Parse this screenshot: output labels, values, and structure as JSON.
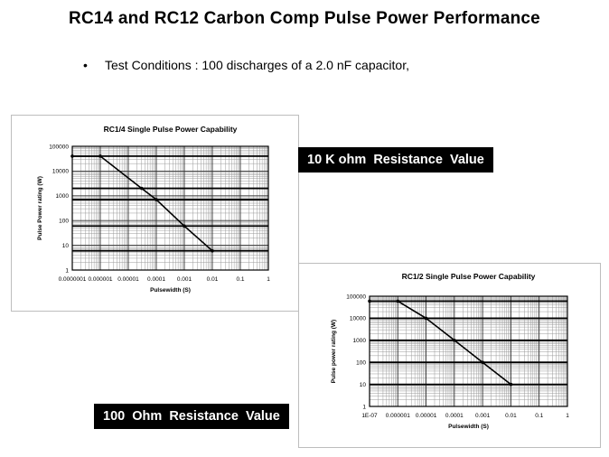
{
  "slide": {
    "title": "RC14 and RC12 Carbon Comp Pulse Power Performance",
    "bullet_char": "•",
    "bullet_text": "Test Conditions : 100 discharges of a 2.0 nF capacitor,"
  },
  "labels": {
    "chart1_resistance": "10 K ohm  Resistance  Value",
    "chart2_resistance": "100  Ohm  Resistance  Value"
  },
  "chart_data": [
    {
      "type": "line",
      "title": "RC1/4 Single Pulse Power Capability",
      "xlabel": "Pulsewidth (S)",
      "ylabel": "Pulse Power rating (W)",
      "x_scale": "log",
      "y_scale": "log",
      "xlim": [
        1e-07,
        1
      ],
      "ylim": [
        1,
        100000
      ],
      "x_tick_labels": [
        "0.0000001",
        "0.000001",
        "0.00001",
        "0.0001",
        "0.001",
        "0.01",
        "0.1",
        "1"
      ],
      "y_tick_labels": [
        "1",
        "10",
        "100",
        "1000",
        "10000",
        "100000"
      ],
      "grid": true,
      "series": [
        {
          "x": [
            1e-07,
            1e-06,
            3e-05,
            0.0001,
            0.001,
            0.01
          ],
          "y": [
            40000,
            40000,
            2000,
            700,
            60,
            6
          ]
        }
      ],
      "horizontal_guides": [
        40000,
        2000,
        700,
        60,
        6
      ]
    },
    {
      "type": "line",
      "title": "RC1/2 Single Pulse Power Capability",
      "xlabel": "Pulsewidth (S)",
      "ylabel": "Pulse power rating (W)",
      "x_scale": "log",
      "y_scale": "log",
      "xlim": [
        1e-07,
        1
      ],
      "ylim": [
        1,
        100000
      ],
      "x_tick_labels": [
        "1E-07",
        "0.000001",
        "0.00001",
        "0.0001",
        "0.001",
        "0.01",
        "0.1",
        "1"
      ],
      "y_tick_labels": [
        "1",
        "10",
        "100",
        "1000",
        "10000",
        "100000"
      ],
      "grid": true,
      "series": [
        {
          "x": [
            1e-07,
            1e-06,
            1e-05,
            0.0001,
            0.001,
            0.01
          ],
          "y": [
            60000,
            60000,
            10000,
            1000,
            100,
            10
          ]
        }
      ],
      "horizontal_guides": [
        60000,
        10000,
        1000,
        100,
        10
      ]
    }
  ]
}
